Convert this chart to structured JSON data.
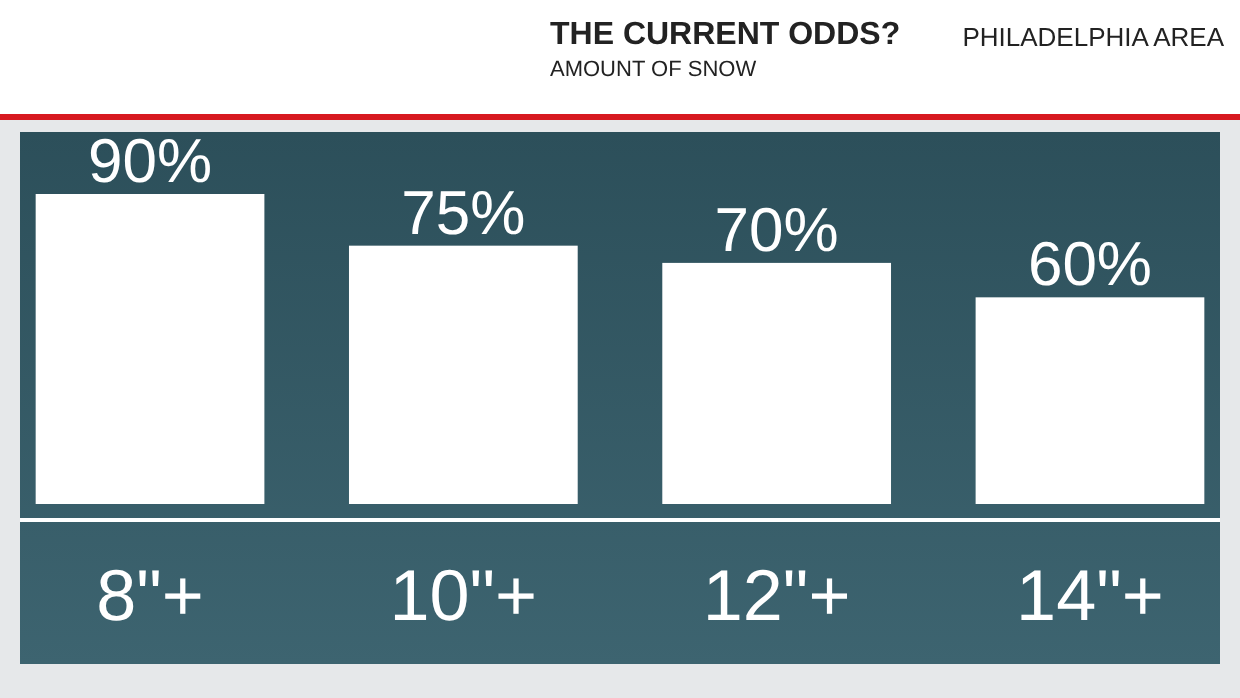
{
  "chart_data": {
    "type": "bar",
    "title": "THE CURRENT ODDS?",
    "subtitle": "AMOUNT OF SNOW",
    "annotations": [
      "PHILADELPHIA AREA"
    ],
    "categories": [
      "8\"+",
      "10\"+",
      "12\"+",
      "14\"+"
    ],
    "values": [
      90,
      75,
      70,
      60
    ],
    "color": "#ffffff",
    "value_labels": [
      "90%",
      "75%",
      "70%",
      "60%"
    ]
  }
}
